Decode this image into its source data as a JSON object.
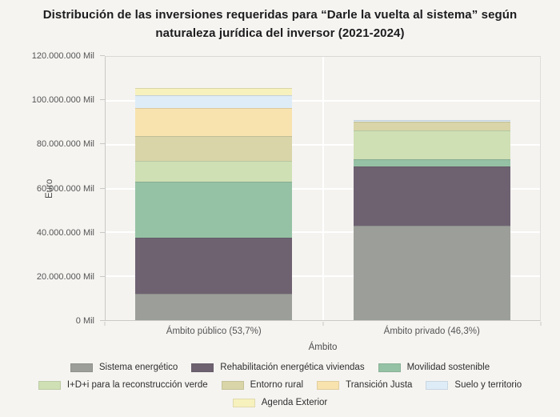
{
  "chart": {
    "title": "Distribución de las inversiones requeridas para “Darle la vuelta al sistema” según naturaleza jurídica del inversor (2021-2024)",
    "xlabel": "Ámbito",
    "ylabel": "Euro"
  },
  "chart_data": {
    "type": "bar",
    "stacked": true,
    "title": "Distribución de las inversiones requeridas para “Darle la vuelta al sistema” según naturaleza jurídica del inversor (2021-2024)",
    "xlabel": "Ámbito",
    "ylabel": "Euro",
    "unit": "Mil",
    "grid": true,
    "legend_position": "bottom",
    "ylim": [
      0,
      120000000
    ],
    "yticks": [
      {
        "value": 0,
        "label": "0 Mil"
      },
      {
        "value": 20000000,
        "label": "20.000.000 Mil"
      },
      {
        "value": 40000000,
        "label": "40.000.000 Mil"
      },
      {
        "value": 60000000,
        "label": "60.000.000 Mil"
      },
      {
        "value": 80000000,
        "label": "80.000.000 Mil"
      },
      {
        "value": 100000000,
        "label": "100.000.000 Mil"
      },
      {
        "value": 120000000,
        "label": "120.000.000 Mil"
      }
    ],
    "categories": [
      "Ámbito público (53,7%)",
      "Ámbito privado (46,3%)"
    ],
    "series": [
      {
        "name": "Sistema energético",
        "color": "#9b9e99",
        "values": [
          12200000,
          43000000
        ]
      },
      {
        "name": "Rehabilitación energética viviendas",
        "color": "#6e6271",
        "values": [
          25300000,
          26900000
        ]
      },
      {
        "name": "Movilidad sostenible",
        "color": "#95c2a4",
        "values": [
          25500000,
          3600000
        ]
      },
      {
        "name": "I+D+i para la reconstrucción verde",
        "color": "#cfe0b4",
        "values": [
          9700000,
          12800000
        ]
      },
      {
        "name": "Entorno rural",
        "color": "#d9d5a8",
        "values": [
          11200000,
          4100000
        ]
      },
      {
        "name": "Transición Justa",
        "color": "#f8e3ae",
        "values": [
          12900000,
          0
        ]
      },
      {
        "name": "Suelo y territorio",
        "color": "#deecf7",
        "values": [
          5800000,
          900000
        ]
      },
      {
        "name": "Agenda Exterior",
        "color": "#f7f1bd",
        "values": [
          3300000,
          0
        ]
      }
    ],
    "legend_rows": [
      [
        0,
        1,
        2
      ],
      [
        3,
        4,
        5,
        6
      ],
      [
        7
      ]
    ]
  }
}
